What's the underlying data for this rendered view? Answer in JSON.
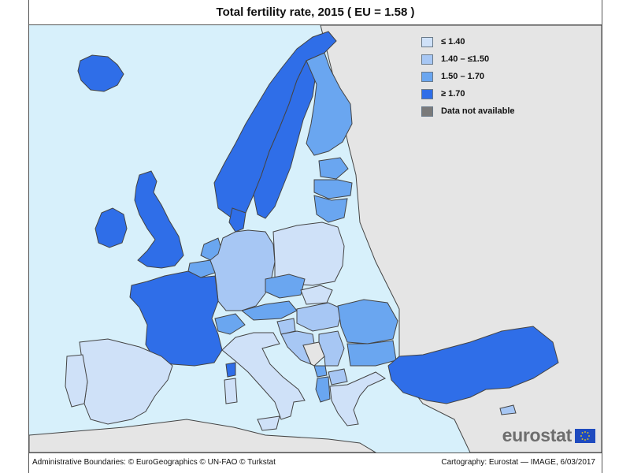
{
  "title": "Total fertility rate, 2015 ( EU = 1.58 )",
  "colors": {
    "sea": "#d7f0fb",
    "land_other": "#e5e5e5",
    "border": "#444444",
    "le_1_40": "#cfe1f8",
    "r_140_150": "#a7c7f4",
    "r_150_170": "#6aa6f0",
    "ge_1_70": "#2f6ee8",
    "na": "#7a7a7a"
  },
  "legend": [
    {
      "label": "≤ 1.40",
      "color": "#cfe1f8"
    },
    {
      "label": "1.40 – ≤1.50",
      "color": "#a7c7f4"
    },
    {
      "label": "1.50 – 1.70",
      "color": "#6aa6f0"
    },
    {
      "label": "≥ 1.70",
      "color": "#2f6ee8"
    },
    {
      "label": "Data not available",
      "color": "#7a7a7a"
    }
  ],
  "logo": {
    "text": "eurostat",
    "icon": "eu-flag-icon"
  },
  "footer": {
    "left": "Administrative Boundaries: © EuroGeographics © UN-FAO © Turkstat",
    "right": "Cartography: Eurostat — IMAGE, 6/03/2017"
  }
}
